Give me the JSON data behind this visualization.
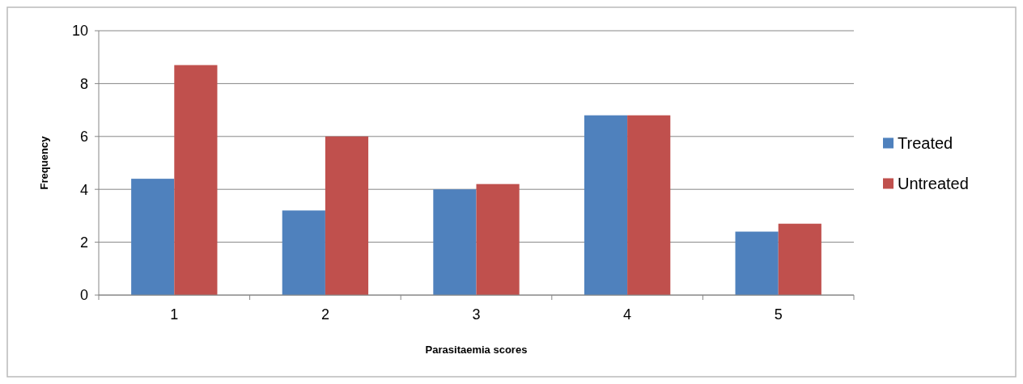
{
  "chart_data": {
    "type": "bar",
    "xlabel": "Parasitaemia scores",
    "ylabel": "Frequency",
    "categories": [
      "1",
      "2",
      "3",
      "4",
      "5"
    ],
    "series": [
      {
        "name": "Treated",
        "color": "#4f81bd",
        "values": [
          4.4,
          3.2,
          4.0,
          6.8,
          2.4
        ]
      },
      {
        "name": "Untreated",
        "color": "#c0504d",
        "values": [
          8.7,
          6.0,
          4.2,
          6.8,
          2.7
        ]
      }
    ],
    "ylim": [
      0,
      10
    ],
    "yticks": [
      0,
      2,
      4,
      6,
      8,
      10
    ],
    "grid": "y",
    "legend": "right"
  }
}
